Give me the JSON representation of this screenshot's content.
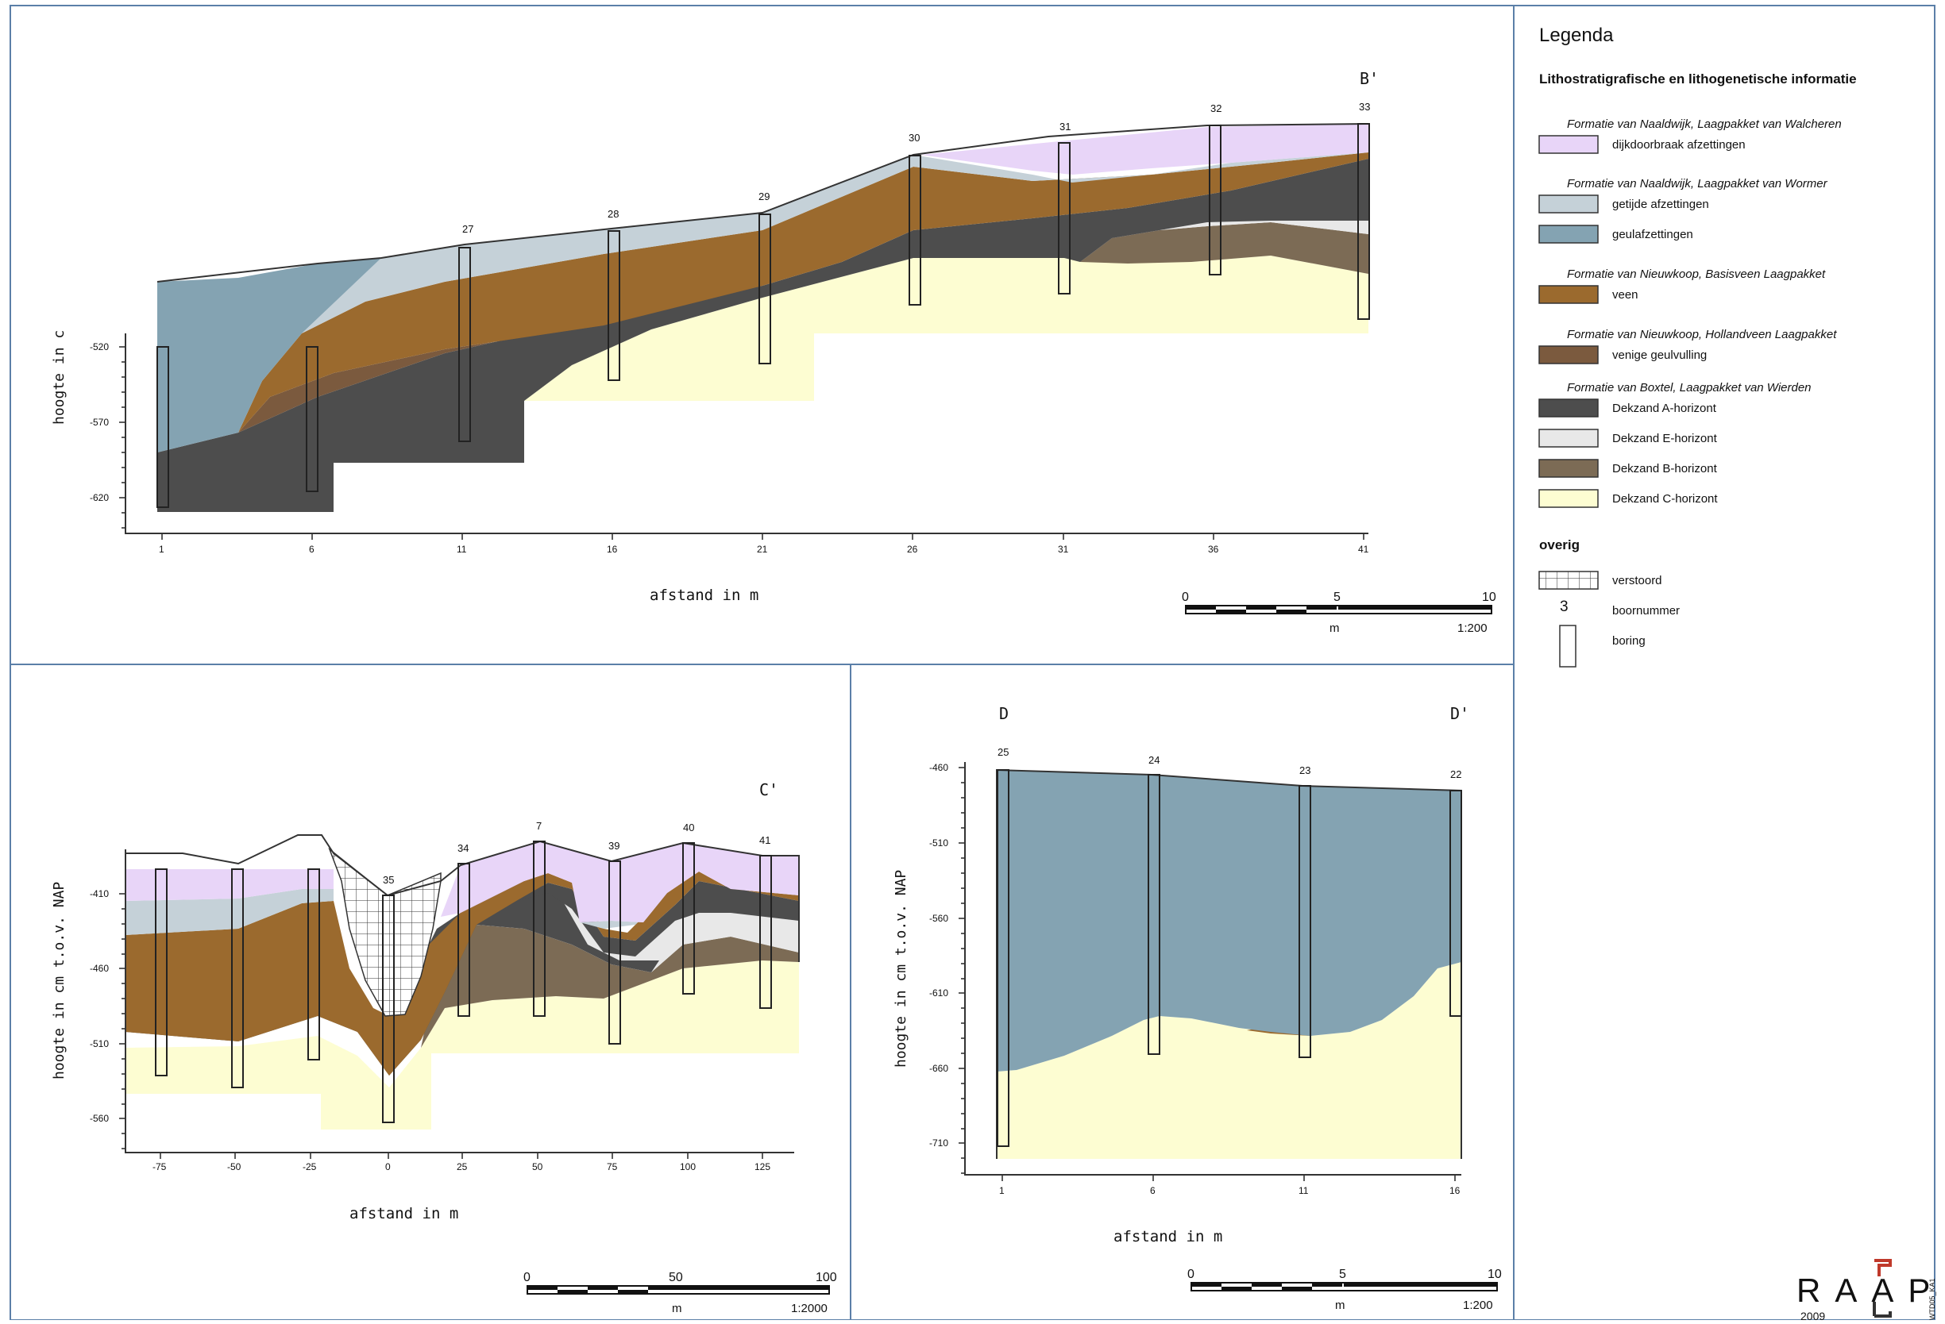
{
  "profiles": {
    "bb": {
      "end_label": "B'",
      "ylabel": "hoogte in c",
      "xlabel": "afstand in m",
      "y_ticks": [
        "-520",
        "-570",
        "-620"
      ],
      "x_ticks": [
        "1",
        "6",
        "11",
        "16",
        "21",
        "26",
        "31",
        "36",
        "41"
      ],
      "bore_numbers": [
        "27",
        "28",
        "29",
        "30",
        "31",
        "32",
        "33"
      ],
      "scalebar": {
        "t0": "0",
        "t1": "5",
        "t2": "10",
        "unit": "m",
        "ratio": "1:200"
      }
    },
    "cc": {
      "end_label": "C'",
      "ylabel": "hoogte in cm t.o.v. NAP",
      "xlabel": "afstand in m",
      "y_ticks": [
        "-410",
        "-460",
        "-510",
        "-560"
      ],
      "x_ticks": [
        "-75",
        "-50",
        "-25",
        "0",
        "25",
        "50",
        "75",
        "100",
        "125"
      ],
      "bore_numbers": [
        "35",
        "34",
        "7",
        "39",
        "40",
        "41"
      ],
      "scalebar": {
        "t0": "0",
        "t1": "50",
        "t2": "100",
        "unit": "m",
        "ratio": "1:2000"
      }
    },
    "dd": {
      "start_label": "D",
      "end_label": "D'",
      "ylabel": "hoogte in cm t.o.v. NAP",
      "xlabel": "afstand in m",
      "y_ticks": [
        "-460",
        "-510",
        "-560",
        "-610",
        "-660",
        "-710"
      ],
      "x_ticks": [
        "1",
        "6",
        "11",
        "16"
      ],
      "bore_numbers": [
        "25",
        "24",
        "23",
        "22"
      ],
      "scalebar": {
        "t0": "0",
        "t1": "5",
        "t2": "10",
        "unit": "m",
        "ratio": "1:200"
      }
    }
  },
  "legend": {
    "title": "Legenda",
    "subtitle": "Lithostratigrafische en lithogenetische informatie",
    "groups": [
      {
        "heading": "Formatie van Naaldwijk, Laagpakket van Walcheren",
        "items": [
          {
            "label": "dijkdoorbraak afzettingen",
            "color": "#e8d5f8"
          }
        ]
      },
      {
        "heading": "Formatie van Naaldwijk, Laagpakket van Wormer",
        "items": [
          {
            "label": "getijde afzettingen",
            "color": "#c5d1d8"
          },
          {
            "label": "geulafzettingen",
            "color": "#84a3b2"
          }
        ]
      },
      {
        "heading": "Formatie van Nieuwkoop, Basisveen Laagpakket",
        "items": [
          {
            "label": "veen",
            "color": "#9b6a2e"
          }
        ]
      },
      {
        "heading": "Formatie van Nieuwkoop, Hollandveen Laagpakket",
        "items": [
          {
            "label": "venige geulvulling",
            "color": "#7b5a3e"
          }
        ]
      },
      {
        "heading": "Formatie van Boxtel, Laagpakket van Wierden",
        "items": [
          {
            "label": "Dekzand A-horizont",
            "color": "#4d4d4d"
          },
          {
            "label": "Dekzand E-horizont",
            "color": "#e8e8e8"
          },
          {
            "label": "Dekzand B-horizont",
            "color": "#7c6b55"
          },
          {
            "label": "Dekzand C-horizont",
            "color": "#fdfdd2"
          }
        ]
      }
    ],
    "overig_title": "overig",
    "overig": {
      "verstoord": "verstoord",
      "boornummer_symbol": "3",
      "boornummer": "boornummer",
      "boring": "boring"
    }
  },
  "logo": {
    "text": "RAAP",
    "year": "2009",
    "code": "WTD05_KA1"
  }
}
